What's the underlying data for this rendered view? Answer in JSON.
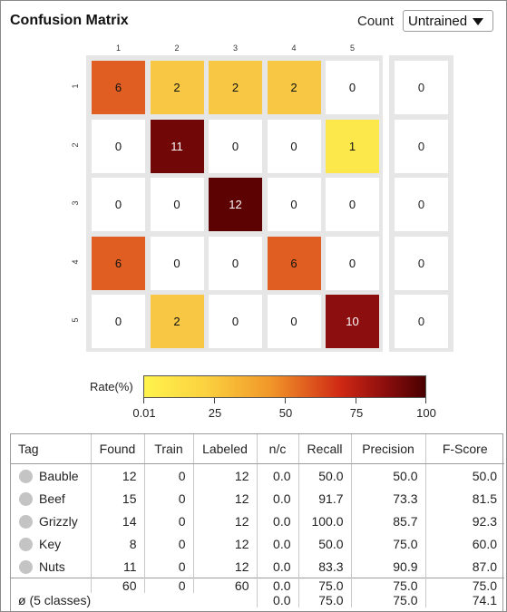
{
  "header": {
    "title": "Confusion Matrix",
    "count_label": "Count",
    "select_value": "Untrained"
  },
  "matrix": {
    "col_labels": [
      "1",
      "2",
      "3",
      "4",
      "5"
    ],
    "row_labels": [
      "1",
      "2",
      "3",
      "4",
      "5"
    ],
    "rows": [
      [
        6,
        2,
        2,
        2,
        0
      ],
      [
        0,
        11,
        0,
        0,
        1
      ],
      [
        0,
        0,
        12,
        0,
        0
      ],
      [
        6,
        0,
        0,
        6,
        0
      ],
      [
        0,
        2,
        0,
        0,
        10
      ]
    ],
    "unassigned": [
      0,
      0,
      0,
      0,
      0
    ],
    "cell_colors": [
      [
        "#e15e23",
        "#f8c844",
        "#f8c844",
        "#f8c844",
        "#ffffff"
      ],
      [
        "#ffffff",
        "#720707",
        "#ffffff",
        "#ffffff",
        "#fde84c"
      ],
      [
        "#ffffff",
        "#ffffff",
        "#5c0202",
        "#ffffff",
        "#ffffff"
      ],
      [
        "#e15e23",
        "#ffffff",
        "#ffffff",
        "#e15e23",
        "#ffffff"
      ],
      [
        "#ffffff",
        "#f8c844",
        "#ffffff",
        "#ffffff",
        "#8c0e0e"
      ]
    ]
  },
  "legend": {
    "title": "Rate(%)",
    "ticks": [
      "0.01",
      "25",
      "50",
      "75",
      "100"
    ]
  },
  "table": {
    "headers": [
      "Tag",
      "Found",
      "Train",
      "Labeled",
      "n/c",
      "Recall",
      "Precision",
      "F-Score"
    ],
    "rows": [
      {
        "tag": "Bauble",
        "found": "12",
        "train": "0",
        "labeled": "12",
        "nc": "0.0",
        "recall": "50.0",
        "precision": "50.0",
        "fscore": "50.0"
      },
      {
        "tag": "Beef",
        "found": "15",
        "train": "0",
        "labeled": "12",
        "nc": "0.0",
        "recall": "91.7",
        "precision": "73.3",
        "fscore": "81.5"
      },
      {
        "tag": "Grizzly",
        "found": "14",
        "train": "0",
        "labeled": "12",
        "nc": "0.0",
        "recall": "100.0",
        "precision": "85.7",
        "fscore": "92.3"
      },
      {
        "tag": "Key",
        "found": "8",
        "train": "0",
        "labeled": "12",
        "nc": "0.0",
        "recall": "50.0",
        "precision": "75.0",
        "fscore": "60.0"
      },
      {
        "tag": "Nuts",
        "found": "11",
        "train": "0",
        "labeled": "12",
        "nc": "0.0",
        "recall": "83.3",
        "precision": "90.9",
        "fscore": "87.0"
      }
    ],
    "totals": {
      "found": "60",
      "train": "0",
      "labeled": "60",
      "nc": "0.0",
      "recall": "75.0",
      "precision": "75.0",
      "fscore": "75.0"
    },
    "average": {
      "label": "ø (5 classes)",
      "nc": "0.0",
      "recall": "75.0",
      "precision": "75.0",
      "fscore": "74.1"
    }
  }
}
